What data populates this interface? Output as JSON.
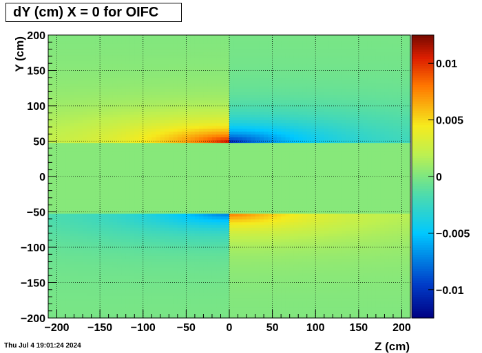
{
  "chart_data": {
    "type": "heatmap",
    "title": "dY (cm) X = 0 for OIFC",
    "xlabel": "Z (cm)",
    "ylabel": "Y (cm)",
    "xlim": [
      -210,
      210
    ],
    "ylim": [
      -200,
      200
    ],
    "x_ticks": [
      -200,
      -150,
      -100,
      -50,
      0,
      50,
      100,
      150,
      200
    ],
    "x_tick_labels": [
      "−200",
      "−150",
      "−100",
      "−50",
      "0",
      "50",
      "100",
      "150",
      "200"
    ],
    "y_ticks": [
      -200,
      -150,
      -100,
      -50,
      0,
      50,
      100,
      150,
      200
    ],
    "y_tick_labels": [
      "−200",
      "−150",
      "−100",
      "−50",
      "0",
      "50",
      "100",
      "150",
      "200"
    ],
    "color_range": [
      -0.0125,
      0.0125
    ],
    "colorbar_ticks": [
      -0.01,
      -0.005,
      0,
      0.005,
      0.01
    ],
    "colorbar_tick_labels": [
      "−0.01",
      "−0.005",
      "0",
      "0.005",
      "0.01"
    ],
    "colormap": "rainbow",
    "grid": true,
    "regions": [
      {
        "z": [
          -210,
          0
        ],
        "y": [
          50,
          200
        ],
        "peak": 0.011,
        "at": [
          0,
          50
        ]
      },
      {
        "z": [
          0,
          210
        ],
        "y": [
          50,
          200
        ],
        "peak": -0.0105,
        "at": [
          0,
          50
        ]
      },
      {
        "z": [
          -210,
          0
        ],
        "y": [
          -200,
          -50
        ],
        "peak": -0.0085,
        "at": [
          0,
          -50
        ]
      },
      {
        "z": [
          0,
          210
        ],
        "y": [
          -200,
          -50
        ],
        "peak": 0.009,
        "at": [
          0,
          -50
        ]
      }
    ]
  },
  "footer": {
    "timestamp": "Thu Jul  4 19:01:24 2024"
  }
}
